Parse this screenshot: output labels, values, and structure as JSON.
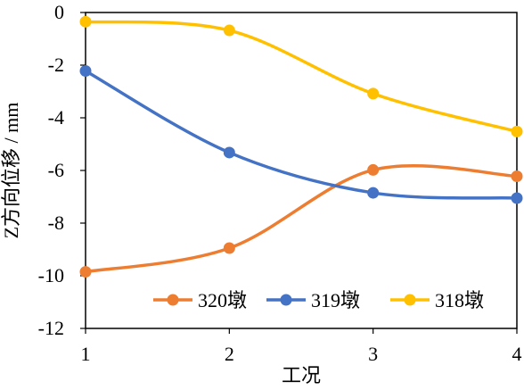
{
  "chart_data": {
    "type": "line",
    "title": "",
    "xlabel": "工况",
    "ylabel": "Z方向位移 / mm",
    "x": [
      1,
      2,
      3,
      4
    ],
    "x_ticks": [
      "1",
      "2",
      "3",
      "4"
    ],
    "xlim": [
      1,
      4
    ],
    "ylim": [
      -12,
      0
    ],
    "y_ticks": [
      "0",
      "-2",
      "-4",
      "-6",
      "-8",
      "-10",
      "-12"
    ],
    "y_tick_values": [
      0,
      -2,
      -4,
      -6,
      -8,
      -10,
      -12
    ],
    "grid": false,
    "smooth": true,
    "legend_position": "bottom-right",
    "series": [
      {
        "name": "320墩",
        "color": "#ED7D31",
        "values": [
          -9.85,
          -8.95,
          -5.98,
          -6.22
        ]
      },
      {
        "name": "319墩",
        "color": "#4472C4",
        "values": [
          -2.22,
          -5.32,
          -6.85,
          -7.05
        ]
      },
      {
        "name": "318墩",
        "color": "#FFC000",
        "values": [
          -0.35,
          -0.68,
          -3.08,
          -4.52
        ]
      }
    ]
  }
}
